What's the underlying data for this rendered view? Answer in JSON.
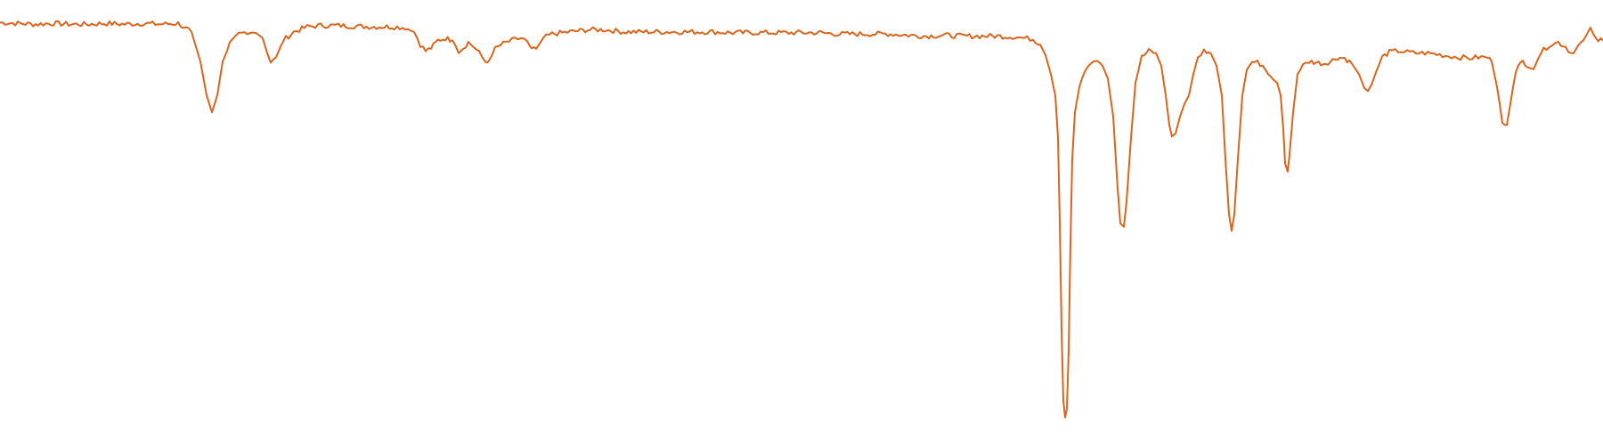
{
  "chart_data": {
    "type": "line",
    "title": "",
    "xlabel": "",
    "ylabel": "",
    "grid": false,
    "legend": "none",
    "xlim": [
      0,
      1800
    ],
    "ylim": [
      0,
      1
    ],
    "colors": {
      "line": "#d9661c",
      "background": "#ffffff"
    },
    "series": [
      {
        "points": [
          [
            0,
            0.972
          ],
          [
            20,
            0.97
          ],
          [
            40,
            0.968
          ],
          [
            60,
            0.97
          ],
          [
            80,
            0.968
          ],
          [
            100,
            0.968
          ],
          [
            120,
            0.97
          ],
          [
            140,
            0.968
          ],
          [
            160,
            0.97
          ],
          [
            180,
            0.968
          ],
          [
            200,
            0.97
          ],
          [
            215,
            0.95
          ],
          [
            225,
            0.88
          ],
          [
            232,
            0.8
          ],
          [
            238,
            0.76
          ],
          [
            244,
            0.8
          ],
          [
            250,
            0.88
          ],
          [
            258,
            0.92
          ],
          [
            268,
            0.945
          ],
          [
            278,
            0.95
          ],
          [
            288,
            0.95
          ],
          [
            295,
            0.935
          ],
          [
            300,
            0.9
          ],
          [
            304,
            0.875
          ],
          [
            310,
            0.89
          ],
          [
            318,
            0.93
          ],
          [
            330,
            0.95
          ],
          [
            345,
            0.962
          ],
          [
            360,
            0.965
          ],
          [
            380,
            0.965
          ],
          [
            400,
            0.963
          ],
          [
            420,
            0.962
          ],
          [
            440,
            0.962
          ],
          [
            455,
            0.96
          ],
          [
            465,
            0.95
          ],
          [
            472,
            0.92
          ],
          [
            478,
            0.905
          ],
          [
            484,
            0.912
          ],
          [
            492,
            0.93
          ],
          [
            500,
            0.935
          ],
          [
            508,
            0.93
          ],
          [
            515,
            0.905
          ],
          [
            520,
            0.912
          ],
          [
            526,
            0.925
          ],
          [
            532,
            0.915
          ],
          [
            538,
            0.9
          ],
          [
            545,
            0.88
          ],
          [
            550,
            0.885
          ],
          [
            556,
            0.91
          ],
          [
            565,
            0.922
          ],
          [
            575,
            0.93
          ],
          [
            585,
            0.935
          ],
          [
            592,
            0.928
          ],
          [
            597,
            0.908
          ],
          [
            602,
            0.91
          ],
          [
            610,
            0.935
          ],
          [
            620,
            0.945
          ],
          [
            640,
            0.95
          ],
          [
            660,
            0.955
          ],
          [
            680,
            0.955
          ],
          [
            700,
            0.95
          ],
          [
            720,
            0.95
          ],
          [
            740,
            0.95
          ],
          [
            760,
            0.95
          ],
          [
            780,
            0.95
          ],
          [
            800,
            0.95
          ],
          [
            820,
            0.948
          ],
          [
            840,
            0.948
          ],
          [
            860,
            0.948
          ],
          [
            880,
            0.948
          ],
          [
            900,
            0.948
          ],
          [
            920,
            0.948
          ],
          [
            940,
            0.945
          ],
          [
            960,
            0.945
          ],
          [
            980,
            0.945
          ],
          [
            1000,
            0.945
          ],
          [
            1020,
            0.942
          ],
          [
            1040,
            0.94
          ],
          [
            1060,
            0.942
          ],
          [
            1080,
            0.94
          ],
          [
            1100,
            0.94
          ],
          [
            1120,
            0.94
          ],
          [
            1140,
            0.938
          ],
          [
            1150,
            0.935
          ],
          [
            1160,
            0.933
          ],
          [
            1168,
            0.92
          ],
          [
            1174,
            0.895
          ],
          [
            1180,
            0.85
          ],
          [
            1185,
            0.8
          ],
          [
            1188,
            0.7
          ],
          [
            1190,
            0.5
          ],
          [
            1192,
            0.25
          ],
          [
            1194,
            0.08
          ],
          [
            1196,
            0.04
          ],
          [
            1198,
            0.06
          ],
          [
            1200,
            0.2
          ],
          [
            1202,
            0.45
          ],
          [
            1204,
            0.65
          ],
          [
            1207,
            0.76
          ],
          [
            1212,
            0.82
          ],
          [
            1218,
            0.86
          ],
          [
            1225,
            0.88
          ],
          [
            1232,
            0.886
          ],
          [
            1238,
            0.87
          ],
          [
            1244,
            0.84
          ],
          [
            1250,
            0.75
          ],
          [
            1255,
            0.58
          ],
          [
            1258,
            0.5
          ],
          [
            1262,
            0.49
          ],
          [
            1265,
            0.55
          ],
          [
            1270,
            0.7
          ],
          [
            1275,
            0.83
          ],
          [
            1282,
            0.89
          ],
          [
            1290,
            0.905
          ],
          [
            1298,
            0.9
          ],
          [
            1304,
            0.87
          ],
          [
            1309,
            0.8
          ],
          [
            1313,
            0.73
          ],
          [
            1316,
            0.7
          ],
          [
            1320,
            0.71
          ],
          [
            1325,
            0.75
          ],
          [
            1330,
            0.78
          ],
          [
            1335,
            0.8
          ],
          [
            1340,
            0.85
          ],
          [
            1345,
            0.89
          ],
          [
            1352,
            0.905
          ],
          [
            1360,
            0.898
          ],
          [
            1366,
            0.87
          ],
          [
            1372,
            0.8
          ],
          [
            1376,
            0.65
          ],
          [
            1380,
            0.52
          ],
          [
            1383,
            0.48
          ],
          [
            1386,
            0.52
          ],
          [
            1390,
            0.65
          ],
          [
            1395,
            0.8
          ],
          [
            1400,
            0.86
          ],
          [
            1406,
            0.88
          ],
          [
            1412,
            0.878
          ],
          [
            1418,
            0.87
          ],
          [
            1424,
            0.85
          ],
          [
            1430,
            0.84
          ],
          [
            1434,
            0.83
          ],
          [
            1438,
            0.8
          ],
          [
            1441,
            0.72
          ],
          [
            1443,
            0.64
          ],
          [
            1446,
            0.62
          ],
          [
            1448,
            0.66
          ],
          [
            1452,
            0.76
          ],
          [
            1457,
            0.85
          ],
          [
            1463,
            0.87
          ],
          [
            1470,
            0.88
          ],
          [
            1478,
            0.878
          ],
          [
            1486,
            0.875
          ],
          [
            1494,
            0.88
          ],
          [
            1502,
            0.89
          ],
          [
            1510,
            0.888
          ],
          [
            1518,
            0.875
          ],
          [
            1526,
            0.85
          ],
          [
            1532,
            0.818
          ],
          [
            1536,
            0.81
          ],
          [
            1540,
            0.825
          ],
          [
            1546,
            0.86
          ],
          [
            1552,
            0.89
          ],
          [
            1560,
            0.902
          ],
          [
            1570,
            0.905
          ],
          [
            1580,
            0.902
          ],
          [
            1590,
            0.9
          ],
          [
            1600,
            0.9
          ],
          [
            1610,
            0.898
          ],
          [
            1620,
            0.895
          ],
          [
            1630,
            0.892
          ],
          [
            1640,
            0.89
          ],
          [
            1650,
            0.888
          ],
          [
            1660,
            0.89
          ],
          [
            1670,
            0.89
          ],
          [
            1675,
            0.88
          ],
          [
            1681,
            0.82
          ],
          [
            1687,
            0.74
          ],
          [
            1692,
            0.73
          ],
          [
            1696,
            0.78
          ],
          [
            1702,
            0.86
          ],
          [
            1710,
            0.88
          ],
          [
            1718,
            0.868
          ],
          [
            1722,
            0.862
          ],
          [
            1730,
            0.9
          ],
          [
            1740,
            0.92
          ],
          [
            1750,
            0.925
          ],
          [
            1758,
            0.915
          ],
          [
            1764,
            0.9
          ],
          [
            1770,
            0.91
          ],
          [
            1778,
            0.93
          ],
          [
            1786,
            0.96
          ],
          [
            1792,
            0.93
          ],
          [
            1800,
            0.93
          ]
        ]
      }
    ]
  }
}
